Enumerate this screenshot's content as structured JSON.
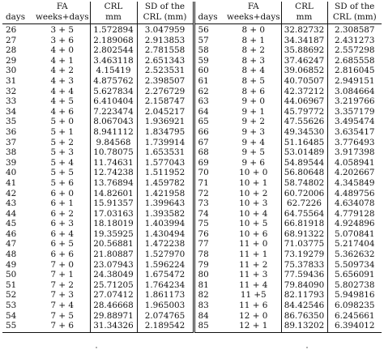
{
  "header": {
    "left": {
      "days": "days",
      "fa_top": "FA",
      "fa_bottom": "weeks+days",
      "crl_top": "CRL",
      "crl_bottom": "mm",
      "sd_top": "SD of the",
      "sd_bottom": "CRL (mm)"
    },
    "right": {
      "days": "days",
      "fa_top": "FA",
      "fa_bottom": "weeks+days",
      "crl_top": "CRL",
      "crl_bottom": "mm",
      "sd_top": "SD of the",
      "sd_bottom": "CRL (mm)"
    }
  },
  "rows": [
    {
      "d1": "26",
      "fa1": "3 + 5",
      "crl1": "1.572894",
      "sd1": "3.047959",
      "d2": "56",
      "fa2": "8 + 0",
      "crl2": "32.82732",
      "sd2": "2.308587"
    },
    {
      "d1": "27",
      "fa1": "3 + 6",
      "crl1": "2.189068",
      "sd1": "2.913853",
      "d2": "57",
      "fa2": "8 + 1",
      "crl2": "34.34187",
      "sd2": "2.431273"
    },
    {
      "d1": "28",
      "fa1": "4 + 0",
      "crl1": "2.802544",
      "sd1": "2.781558",
      "d2": "58",
      "fa2": "8 + 2",
      "crl2": "35.88692",
      "sd2": "2.557298"
    },
    {
      "d1": "29",
      "fa1": "4 + 1",
      "crl1": "3.463118",
      "sd1": "2.651343",
      "d2": "59",
      "fa2": "8 + 3",
      "crl2": "37.46247",
      "sd2": "2.685558"
    },
    {
      "d1": "30",
      "fa1": "4 + 2",
      "crl1": "4.15419",
      "sd1": "2.523531",
      "d2": "60",
      "fa2": "8 + 4",
      "crl2": "39.06852",
      "sd2": "2.816045"
    },
    {
      "d1": "31",
      "fa1": "4 + 3",
      "crl1": "4.875762",
      "sd1": "2.398507",
      "d2": "61",
      "fa2": "8 + 5",
      "crl2": "40.70507",
      "sd2": "2.949151"
    },
    {
      "d1": "32",
      "fa1": "4 + 4",
      "crl1": "5.627834",
      "sd1": "2.276729",
      "d2": "62",
      "fa2": "8 + 6",
      "crl2": "42.37212",
      "sd2": "3.084664"
    },
    {
      "d1": "33",
      "fa1": "4 + 5",
      "crl1": "6.410404",
      "sd1": "2.158747",
      "d2": "63",
      "fa2": "9 + 0",
      "crl2": "44.06967",
      "sd2": "3.219766"
    },
    {
      "d1": "34",
      "fa1": "4 + 6",
      "crl1": "7.223474",
      "sd1": "2.045217",
      "d2": "64",
      "fa2": "9 + 1",
      "crl2": "45.79772",
      "sd2": "3.357179"
    },
    {
      "d1": "35",
      "fa1": "5 + 0",
      "crl1": "8.067043",
      "sd1": "1.936921",
      "d2": "65",
      "fa2": "9 + 2",
      "crl2": "47.55626",
      "sd2": "3.495474"
    },
    {
      "d1": "36",
      "fa1": "5 + 1",
      "crl1": "8.941112",
      "sd1": "1.834795",
      "d2": "66",
      "fa2": "9 + 3",
      "crl2": "49.34530",
      "sd2": "3.635417"
    },
    {
      "d1": "37",
      "fa1": "5 + 2",
      "crl1": "9.84568",
      "sd1": "1.739914",
      "d2": "67",
      "fa2": "9 + 4",
      "crl2": "51.16485",
      "sd2": "3.776493"
    },
    {
      "d1": "38",
      "fa1": "5 + 3",
      "crl1": "10.78075",
      "sd1": "1.653531",
      "d2": "68",
      "fa2": "9 + 5",
      "crl2": "53.01489",
      "sd2": "3.917398"
    },
    {
      "d1": "39",
      "fa1": "5 + 4",
      "crl1": "11.74631",
      "sd1": "1.577043",
      "d2": "69",
      "fa2": "9 + 6",
      "crl2": "54.89544",
      "sd2": "4.058941"
    },
    {
      "d1": "40",
      "fa1": "5 + 5",
      "crl1": "12.74238",
      "sd1": "1.511952",
      "d2": "70",
      "fa2": "10 + 0",
      "crl2": "56.80648",
      "sd2": "4.202667"
    },
    {
      "d1": "41",
      "fa1": "5 + 6",
      "crl1": "13.76894",
      "sd1": "1.459782",
      "d2": "71",
      "fa2": "10 + 1",
      "crl2": "58.74802",
      "sd2": "4.345849"
    },
    {
      "d1": "42",
      "fa1": "6 + 0",
      "crl1": "14.82601",
      "sd1": "1.421958",
      "d2": "72",
      "fa2": "10 + 2",
      "crl2": "60.72006",
      "sd2": "4.489756"
    },
    {
      "d1": "43",
      "fa1": "6 + 1",
      "crl1": "15.91357",
      "sd1": "1.399643",
      "d2": "73",
      "fa2": "10 + 3",
      "crl2": "62.7226",
      "sd2": "4.634078"
    },
    {
      "d1": "44",
      "fa1": "6 + 2",
      "crl1": "17.03163",
      "sd1": "1.393582",
      "d2": "74",
      "fa2": "10 + 4",
      "crl2": "64.75564",
      "sd2": "4.779128"
    },
    {
      "d1": "45",
      "fa1": "6 + 3",
      "crl1": "18.18019",
      "sd1": "1.403994",
      "d2": "75",
      "fa2": "10 + 5",
      "crl2": "66.81918",
      "sd2": "4.924896"
    },
    {
      "d1": "46",
      "fa1": "6 + 4",
      "crl1": "19.35925",
      "sd1": "1.430494",
      "d2": "76",
      "fa2": "10 + 6",
      "crl2": "68.91322",
      "sd2": "5.070841"
    },
    {
      "d1": "47",
      "fa1": "6 + 5",
      "crl1": "20.56881",
      "sd1": "1.472238",
      "d2": "77",
      "fa2": "11 + 0",
      "crl2": "71.03775",
      "sd2": "5.217404"
    },
    {
      "d1": "48",
      "fa1": "6 + 6",
      "crl1": "21.80887",
      "sd1": "1.527970",
      "d2": "78",
      "fa2": "11 + 1",
      "crl2": "73.19279",
      "sd2": "5.362632"
    },
    {
      "d1": "49",
      "fa1": "7 + 0",
      "crl1": "23.07943",
      "sd1": "1.596224",
      "d2": "79",
      "fa2": "11 + 2",
      "crl2": "75.37833",
      "sd2": "5.509734"
    },
    {
      "d1": "50",
      "fa1": "7 + 1",
      "crl1": "24.38049",
      "sd1": "1.675472",
      "d2": "80",
      "fa2": "11 + 3",
      "crl2": "77.59436",
      "sd2": "5.656091"
    },
    {
      "d1": "51",
      "fa1": "7 + 2",
      "crl1": "25.71205",
      "sd1": "1.764234",
      "d2": "81",
      "fa2": "11 + 4",
      "crl2": "79.84090",
      "sd2": "5.802738"
    },
    {
      "d1": "52",
      "fa1": "7 + 3",
      "crl1": "27.07412",
      "sd1": "1.861173",
      "d2": "82",
      "fa2": "11 +5",
      "crl2": "82.11793",
      "sd2": "5.949816"
    },
    {
      "d1": "53",
      "fa1": "7 + 4",
      "crl1": "28.46668",
      "sd1": "1.965003",
      "d2": "83",
      "fa2": "11 + 6",
      "crl2": "84.42546",
      "sd2": "6.098235"
    },
    {
      "d1": "54",
      "fa1": "7 + 5",
      "crl1": "29.88971",
      "sd1": "2.074765",
      "d2": "84",
      "fa2": "12 + 0",
      "crl2": "86.76350",
      "sd2": "6.245661"
    },
    {
      "d1": "55",
      "fa1": "7 + 6",
      "crl1": "31.34326",
      "sd1": "2.189542",
      "d2": "85",
      "fa2": "12 + 1",
      "crl2": "89.13202",
      "sd2": "6.394012"
    }
  ]
}
